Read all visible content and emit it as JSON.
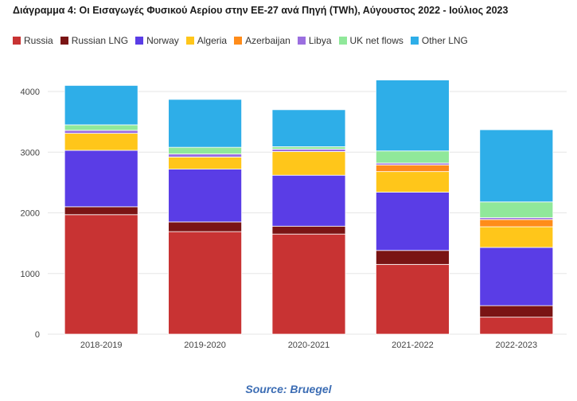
{
  "title": "Διάγραμμα 4: Οι Εισαγωγές Φυσικού Αερίου στην ΕΕ-27 ανά Πηγή (TWh), Αύγουστος 2022 - Ιούλιος 2023",
  "source": "Source: Bruegel",
  "chart_data": {
    "type": "bar",
    "stacked": true,
    "title": "Διάγραμμα 4: Οι Εισαγωγές Φυσικού Αερίου στην ΕΕ-27 ανά Πηγή (TWh), Αύγουστος 2022 - Ιούλιος 2023",
    "xlabel": "",
    "ylabel": "",
    "ylim": [
      0,
      4200
    ],
    "yticks": [
      0,
      1000,
      2000,
      3000,
      4000
    ],
    "grid": true,
    "legend_position": "top",
    "categories": [
      "2018-2019",
      "2019-2020",
      "2020-2021",
      "2021-2022",
      "2022-2023"
    ],
    "series": [
      {
        "name": "Russia",
        "color": "#c83333",
        "values": [
          1970,
          1690,
          1650,
          1150,
          280
        ]
      },
      {
        "name": "Russian LNG",
        "color": "#7a1414",
        "values": [
          130,
          160,
          130,
          230,
          190
        ]
      },
      {
        "name": "Norway",
        "color": "#5a3de6",
        "values": [
          930,
          870,
          840,
          960,
          960
        ]
      },
      {
        "name": "Algeria",
        "color": "#ffc61a",
        "values": [
          280,
          200,
          390,
          340,
          340
        ]
      },
      {
        "name": "Azerbaijan",
        "color": "#ff8c1a",
        "values": [
          0,
          0,
          0,
          110,
          120
        ]
      },
      {
        "name": "Libya",
        "color": "#9b6fe0",
        "values": [
          50,
          50,
          40,
          30,
          30
        ]
      },
      {
        "name": "UK net flows",
        "color": "#90e89a",
        "values": [
          90,
          110,
          40,
          200,
          260
        ]
      },
      {
        "name": "Other LNG",
        "color": "#2eaee8",
        "values": [
          650,
          790,
          610,
          1170,
          1190
        ]
      }
    ]
  }
}
